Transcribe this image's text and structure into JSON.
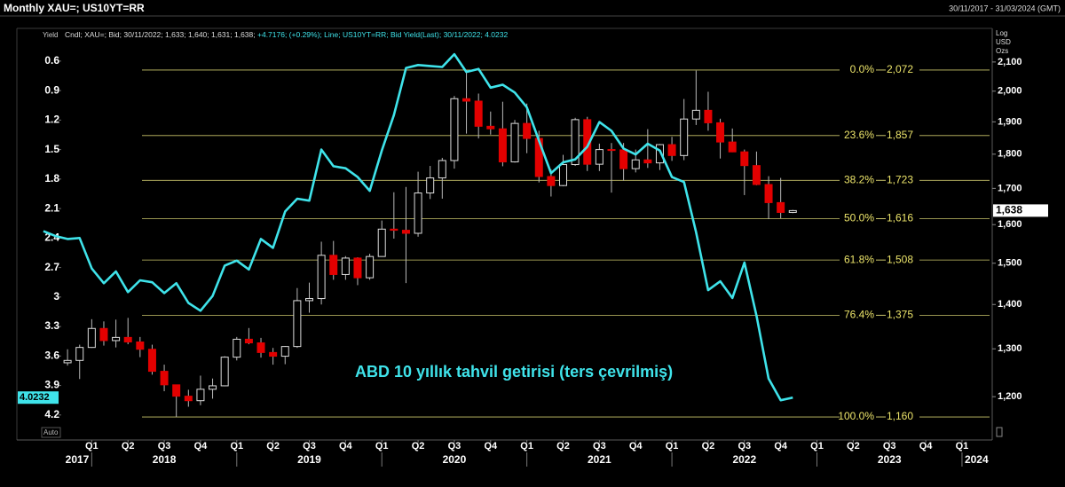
{
  "chart_data": {
    "type": "candlestick",
    "title": "Monthly XAU=; US10YT=RR",
    "date_range": "30/11/2017 - 31/03/2024 (GMT)",
    "y_axis_title": "Yield",
    "y2_axis_titles": [
      "Log",
      "USD",
      "Ozs"
    ],
    "auto_label": "Auto",
    "annotation": "ABD 10 yıllık tahvil getirisi (ters çevrilmiş)",
    "xlim": [
      2017.49,
      2024.19
    ],
    "xticks": [
      {
        "value": 2018,
        "label": "Q1"
      },
      {
        "value": 2018.25,
        "label": "Q2"
      },
      {
        "value": 2018.5,
        "label": "Q3"
      },
      {
        "value": 2018.75,
        "label": "Q4"
      },
      {
        "value": 2019,
        "label": "Q1"
      },
      {
        "value": 2019.25,
        "label": "Q2"
      },
      {
        "value": 2019.5,
        "label": "Q3"
      },
      {
        "value": 2019.75,
        "label": "Q4"
      },
      {
        "value": 2020,
        "label": "Q1"
      },
      {
        "value": 2020.25,
        "label": "Q2"
      },
      {
        "value": 2020.5,
        "label": "Q3"
      },
      {
        "value": 2020.75,
        "label": "Q4"
      },
      {
        "value": 2021,
        "label": "Q1"
      },
      {
        "value": 2021.25,
        "label": "Q2"
      },
      {
        "value": 2021.5,
        "label": "Q3"
      },
      {
        "value": 2021.75,
        "label": "Q4"
      },
      {
        "value": 2022,
        "label": "Q1"
      },
      {
        "value": 2022.25,
        "label": "Q2"
      },
      {
        "value": 2022.5,
        "label": "Q3"
      },
      {
        "value": 2022.75,
        "label": "Q4"
      },
      {
        "value": 2023,
        "label": "Q1"
      },
      {
        "value": 2023.25,
        "label": "Q2"
      },
      {
        "value": 2023.5,
        "label": "Q3"
      },
      {
        "value": 2023.75,
        "label": "Q4"
      },
      {
        "value": 2024,
        "label": "Q1"
      }
    ],
    "xticks_years": [
      {
        "value": 2017.9,
        "label": "2017"
      },
      {
        "value": 2018.5,
        "label": "2018"
      },
      {
        "value": 2019.5,
        "label": "2019"
      },
      {
        "value": 2020.5,
        "label": "2020"
      },
      {
        "value": 2021.5,
        "label": "2021"
      },
      {
        "value": 2022.5,
        "label": "2022"
      },
      {
        "value": 2023.5,
        "label": "2023"
      },
      {
        "value": 2024.1,
        "label": "2024"
      }
    ],
    "ylim": [
      0.52,
      4.31
    ],
    "y_inverted": true,
    "yticks": [
      0.6,
      0.9,
      1.2,
      1.5,
      1.8,
      2.1,
      2.4,
      2.7,
      3,
      3.3,
      3.6,
      3.9,
      4.2
    ],
    "y2lim": [
      1143,
      2131
    ],
    "y2_log": true,
    "y2ticks": [
      {
        "value": 1200,
        "label": "1,200"
      },
      {
        "value": 1300,
        "label": "1,300"
      },
      {
        "value": 1400,
        "label": "1,400"
      },
      {
        "value": 1500,
        "label": "1,500"
      },
      {
        "value": 1600,
        "label": "1,600"
      },
      {
        "value": 1700,
        "label": "1,700"
      },
      {
        "value": 1800,
        "label": "1,800"
      },
      {
        "value": 1900,
        "label": "1,900"
      },
      {
        "value": 2000,
        "label": "2,000"
      },
      {
        "value": 2100,
        "label": "2,100"
      }
    ],
    "fib_color": "#c9c46a",
    "fib_levels": [
      {
        "label": "0.0%",
        "value": 2072,
        "value_label": "2,072"
      },
      {
        "label": "23.6%",
        "value": 1857,
        "value_label": "1,857"
      },
      {
        "label": "38.2%",
        "value": 1723,
        "value_label": "1,723"
      },
      {
        "label": "50.0%",
        "value": 1616,
        "value_label": "1,616"
      },
      {
        "label": "61.8%",
        "value": 1508,
        "value_label": "1,508"
      },
      {
        "label": "76.4%",
        "value": 1375,
        "value_label": "1,375"
      },
      {
        "label": "100.0%",
        "value": 1160,
        "value_label": "1,160"
      }
    ],
    "series": [
      {
        "type": "candlestick",
        "axis": "y2",
        "name": "Cndl; XAU=; Bid; 30/11/2022; 1,633; 1,640; 1,631; 1,638;",
        "change": "+4.7176; (+0.29%);",
        "last_value_label": "1,638",
        "up_color": "#000000",
        "down_color": "#e30000",
        "x": [
          2017.8333,
          2017.9167,
          2018,
          2018.0833,
          2018.1667,
          2018.25,
          2018.3333,
          2018.4167,
          2018.5,
          2018.5833,
          2018.6667,
          2018.75,
          2018.8333,
          2018.9167,
          2019,
          2019.0833,
          2019.1667,
          2019.25,
          2019.3333,
          2019.4167,
          2019.5,
          2019.5833,
          2019.6667,
          2019.75,
          2019.8333,
          2019.9167,
          2020,
          2020.0833,
          2020.1667,
          2020.25,
          2020.3333,
          2020.4167,
          2020.5,
          2020.5833,
          2020.6667,
          2020.75,
          2020.8333,
          2020.9167,
          2021,
          2021.0833,
          2021.1667,
          2021.25,
          2021.3333,
          2021.4167,
          2021.5,
          2021.5833,
          2021.6667,
          2021.75,
          2021.8333,
          2021.9167,
          2022,
          2022.0833,
          2022.1667,
          2022.25,
          2022.3333,
          2022.4167,
          2022.5,
          2022.5833,
          2022.6667,
          2022.75,
          2022.8333
        ],
        "open": [
          1270,
          1275,
          1303,
          1345,
          1318,
          1325,
          1315,
          1299,
          1252,
          1224,
          1201,
          1192,
          1215,
          1222,
          1282,
          1321,
          1313,
          1292,
          1284,
          1305,
          1409,
          1414,
          1520,
          1472,
          1513,
          1464,
          1517,
          1588,
          1585,
          1577,
          1687,
          1730,
          1781,
          1975,
          1967,
          1886,
          1878,
          1777,
          1895,
          1848,
          1734,
          1708,
          1769,
          1907,
          1770,
          1814,
          1813,
          1757,
          1783,
          1774,
          1829,
          1796,
          1909,
          1937,
          1897,
          1837,
          1807,
          1766,
          1711,
          1660,
          1633
        ],
        "high": [
          1299,
          1309,
          1366,
          1361,
          1365,
          1369,
          1326,
          1309,
          1266,
          1224,
          1214,
          1243,
          1237,
          1284,
          1326,
          1346,
          1324,
          1302,
          1306,
          1439,
          1452,
          1555,
          1557,
          1518,
          1515,
          1524,
          1611,
          1689,
          1704,
          1748,
          1765,
          1789,
          1984,
          2072,
          1992,
          1933,
          1965,
          1906,
          1959,
          1872,
          1755,
          1798,
          1913,
          1916,
          1832,
          1834,
          1834,
          1814,
          1877,
          1831,
          1853,
          1974,
          2070,
          1998,
          1910,
          1879,
          1814,
          1808,
          1735,
          1730,
          1640
        ],
        "low": [
          1264,
          1236,
          1302,
          1307,
          1303,
          1310,
          1282,
          1245,
          1211,
          1160,
          1180,
          1183,
          1196,
          1221,
          1275,
          1310,
          1281,
          1266,
          1267,
          1302,
          1381,
          1400,
          1459,
          1459,
          1446,
          1459,
          1517,
          1563,
          1451,
          1568,
          1670,
          1671,
          1757,
          1863,
          1848,
          1860,
          1764,
          1775,
          1803,
          1717,
          1677,
          1706,
          1765,
          1750,
          1750,
          1688,
          1722,
          1746,
          1759,
          1753,
          1780,
          1782,
          1890,
          1872,
          1787,
          1806,
          1681,
          1709,
          1615,
          1617,
          1631
        ],
        "close": [
          1275,
          1303,
          1345,
          1318,
          1325,
          1315,
          1299,
          1252,
          1224,
          1201,
          1192,
          1215,
          1222,
          1282,
          1321,
          1313,
          1292,
          1284,
          1305,
          1409,
          1414,
          1520,
          1472,
          1513,
          1464,
          1517,
          1588,
          1585,
          1577,
          1687,
          1730,
          1781,
          1975,
          1967,
          1886,
          1878,
          1777,
          1895,
          1848,
          1734,
          1708,
          1769,
          1907,
          1770,
          1814,
          1813,
          1757,
          1783,
          1774,
          1829,
          1796,
          1909,
          1937,
          1897,
          1837,
          1807,
          1766,
          1711,
          1660,
          1633,
          1638
        ]
      },
      {
        "type": "line",
        "axis": "y",
        "name": "Line; US10YT=RR; Bid Yield(Last); 30/11/2022; 4.0232",
        "color": "#3fe3ea",
        "x": [
          2017.6667,
          2017.75,
          2017.8333,
          2017.9167,
          2018,
          2018.0833,
          2018.1667,
          2018.25,
          2018.3333,
          2018.4167,
          2018.5,
          2018.5833,
          2018.6667,
          2018.75,
          2018.8333,
          2018.9167,
          2019,
          2019.0833,
          2019.1667,
          2019.25,
          2019.3333,
          2019.4167,
          2019.5,
          2019.5833,
          2019.6667,
          2019.75,
          2019.8333,
          2019.9167,
          2020,
          2020.0833,
          2020.1667,
          2020.25,
          2020.3333,
          2020.4167,
          2020.5,
          2020.5833,
          2020.6667,
          2020.75,
          2020.8333,
          2020.9167,
          2021,
          2021.0833,
          2021.1667,
          2021.25,
          2021.3333,
          2021.4167,
          2021.5,
          2021.5833,
          2021.6667,
          2021.75,
          2021.8333,
          2021.9167,
          2022,
          2022.0833,
          2022.1667,
          2022.25,
          2022.3333,
          2022.4167,
          2022.5,
          2022.5833,
          2022.6667,
          2022.75,
          2022.8333
        ],
        "values": [
          2.33,
          2.38,
          2.41,
          2.4,
          2.71,
          2.86,
          2.74,
          2.95,
          2.83,
          2.85,
          2.96,
          2.86,
          3.06,
          3.14,
          2.99,
          2.68,
          2.63,
          2.72,
          2.41,
          2.5,
          2.13,
          2,
          2.02,
          1.5,
          1.67,
          1.69,
          1.78,
          1.92,
          1.51,
          1.15,
          0.67,
          0.64,
          0.65,
          0.66,
          0.53,
          0.71,
          0.68,
          0.87,
          0.84,
          0.92,
          1.07,
          1.41,
          1.74,
          1.63,
          1.6,
          1.47,
          1.22,
          1.31,
          1.49,
          1.55,
          1.44,
          1.51,
          1.78,
          1.83,
          2.34,
          2.93,
          2.84,
          3.01,
          2.65,
          3.19,
          3.83,
          4.05,
          4.0232
        ]
      }
    ]
  }
}
